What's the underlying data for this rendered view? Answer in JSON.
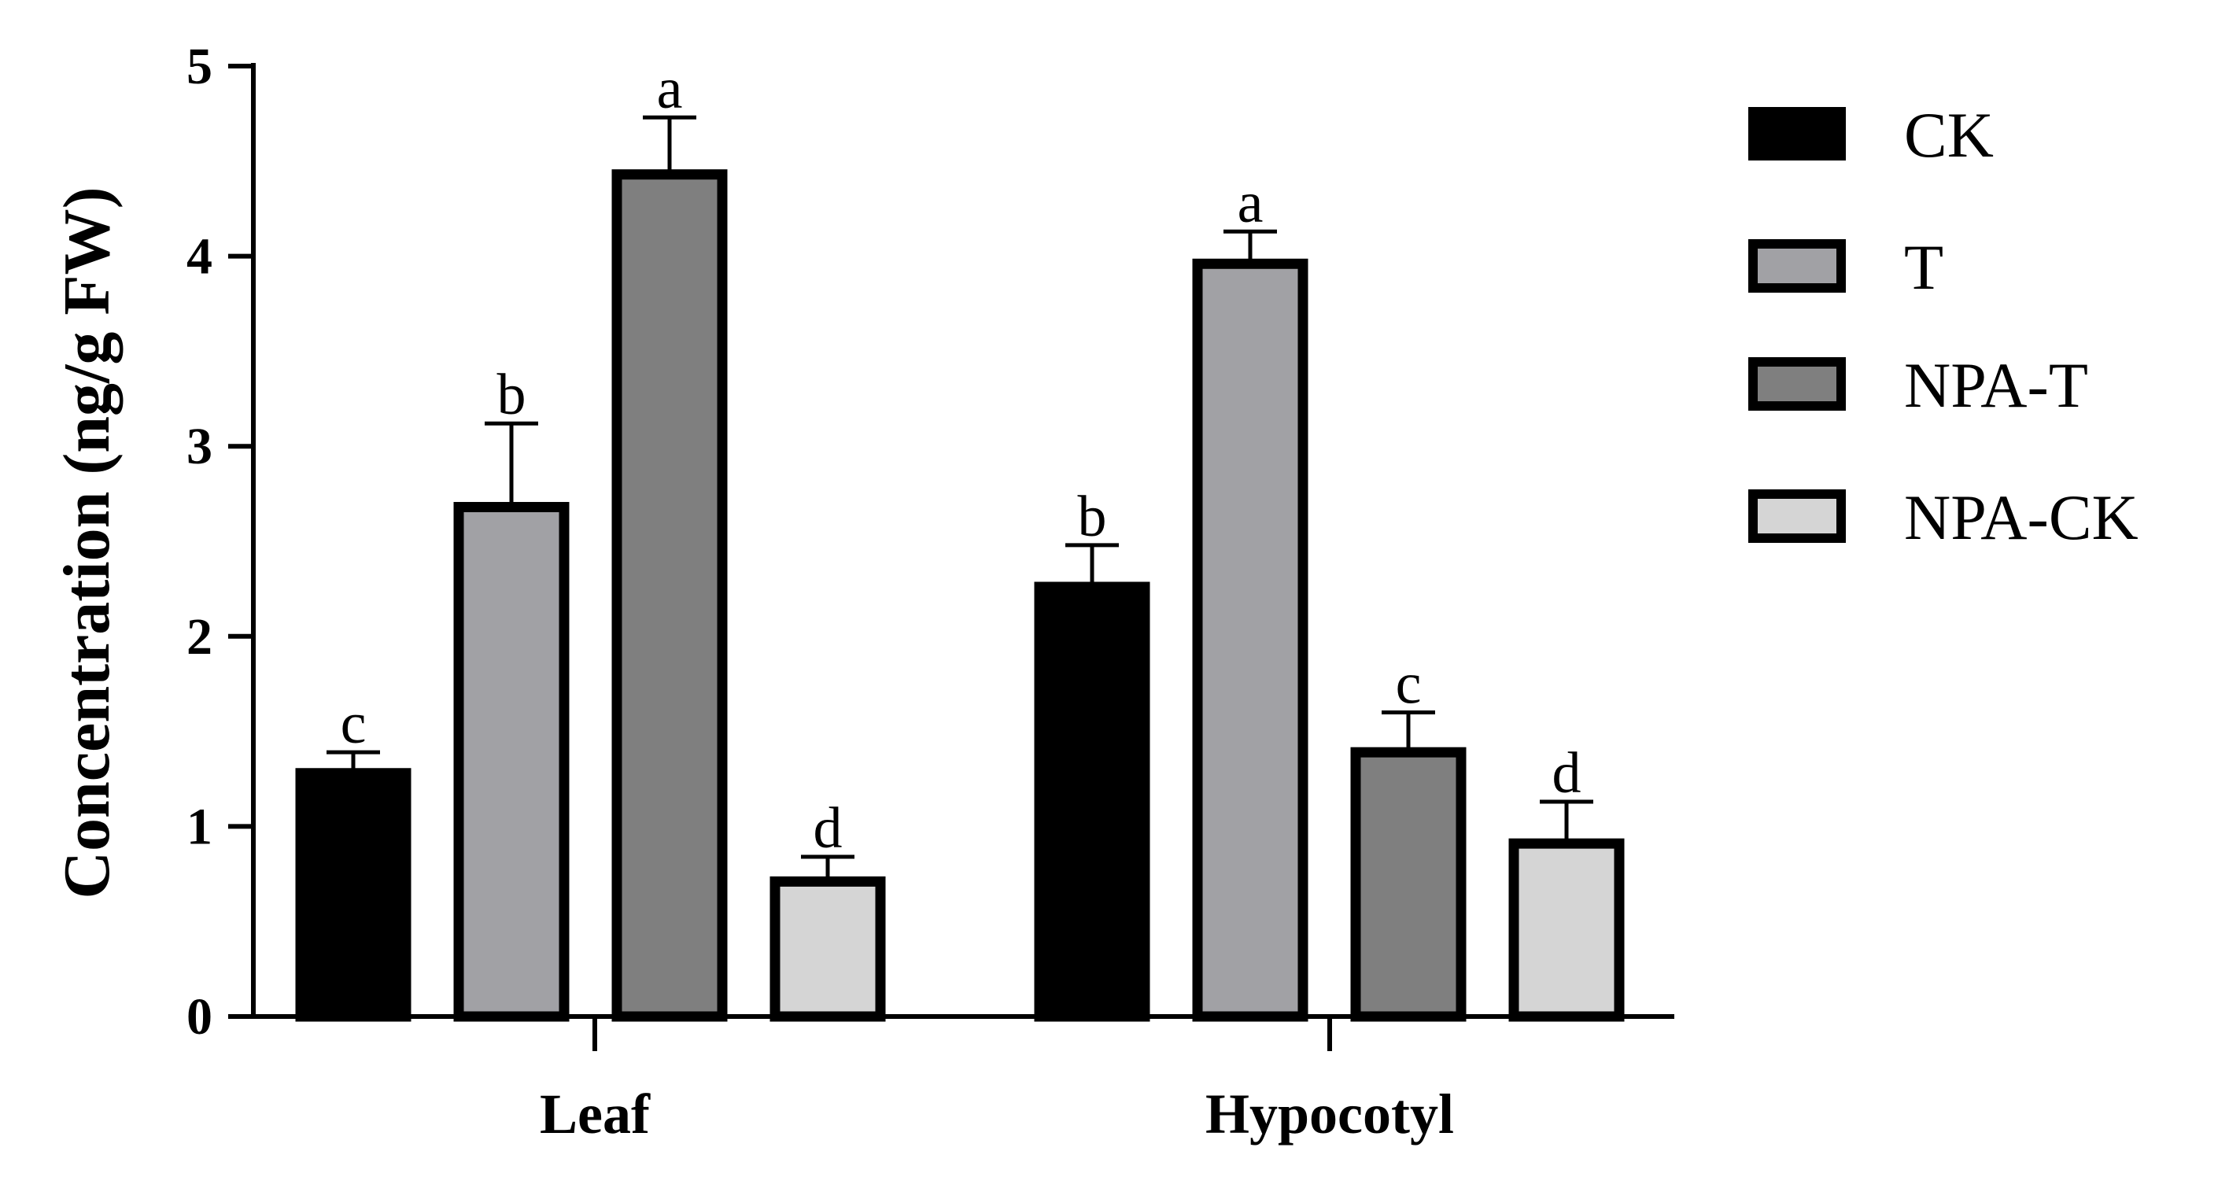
{
  "chart_data": {
    "type": "bar",
    "title": "",
    "xlabel": "",
    "ylabel": "Concentration (ng/g FW)",
    "ylim": [
      0,
      5
    ],
    "yticks": [
      "0",
      "1",
      "2",
      "3",
      "4",
      "5"
    ],
    "categories": [
      "Leaf",
      "Hypocotyl"
    ],
    "legend_position": "right",
    "series": [
      {
        "name": "CK",
        "color": "#000000",
        "values": [
          1.28,
          2.26
        ],
        "errors": [
          0.11,
          0.22
        ],
        "sig": [
          "c",
          "b"
        ]
      },
      {
        "name": "T",
        "color": "#a1a1a5",
        "values": [
          2.68,
          3.96
        ],
        "errors": [
          0.44,
          0.17
        ],
        "sig": [
          "b",
          "a"
        ]
      },
      {
        "name": "NPA-T",
        "color": "#7f7f7f",
        "values": [
          4.43,
          1.39
        ],
        "errors": [
          0.3,
          0.21
        ],
        "sig": [
          "a",
          "c"
        ]
      },
      {
        "name": "NPA-CK",
        "color": "#d5d5d5",
        "values": [
          0.71,
          0.91
        ],
        "errors": [
          0.13,
          0.22
        ],
        "sig": [
          "d",
          "d"
        ]
      }
    ]
  }
}
